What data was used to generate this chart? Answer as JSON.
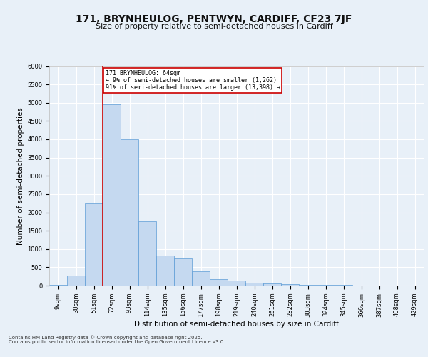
{
  "title1": "171, BRYNHEULOG, PENTWYN, CARDIFF, CF23 7JF",
  "title2": "Size of property relative to semi-detached houses in Cardiff",
  "xlabel": "Distribution of semi-detached houses by size in Cardiff",
  "ylabel": "Number of semi-detached properties",
  "categories": [
    "9sqm",
    "30sqm",
    "51sqm",
    "72sqm",
    "93sqm",
    "114sqm",
    "135sqm",
    "156sqm",
    "177sqm",
    "198sqm",
    "219sqm",
    "240sqm",
    "261sqm",
    "282sqm",
    "303sqm",
    "324sqm",
    "345sqm",
    "366sqm",
    "387sqm",
    "408sqm",
    "429sqm"
  ],
  "values": [
    25,
    270,
    2250,
    4950,
    4000,
    1750,
    820,
    750,
    400,
    170,
    130,
    75,
    50,
    35,
    25,
    15,
    10,
    5,
    4,
    2,
    1
  ],
  "bar_color": "#c5d9f0",
  "bar_edge_color": "#5b9bd5",
  "vline_color": "#cc0000",
  "vline_pos": 2.5,
  "annotation_text": "171 BRYNHEULOG: 64sqm\n← 9% of semi-detached houses are smaller (1,262)\n91% of semi-detached houses are larger (13,398) →",
  "annotation_box_color": "#ffffff",
  "annotation_box_edgecolor": "#cc0000",
  "ylim": [
    0,
    6000
  ],
  "yticks": [
    0,
    500,
    1000,
    1500,
    2000,
    2500,
    3000,
    3500,
    4000,
    4500,
    5000,
    5500,
    6000
  ],
  "footnote": "Contains HM Land Registry data © Crown copyright and database right 2025.\nContains public sector information licensed under the Open Government Licence v3.0.",
  "bg_color": "#e8f0f8",
  "plot_bg_color": "#e8f0f8",
  "grid_color": "#ffffff",
  "title1_fontsize": 10,
  "title2_fontsize": 8,
  "tick_fontsize": 6,
  "ylabel_fontsize": 7.5,
  "xlabel_fontsize": 7.5,
  "footnote_fontsize": 5
}
